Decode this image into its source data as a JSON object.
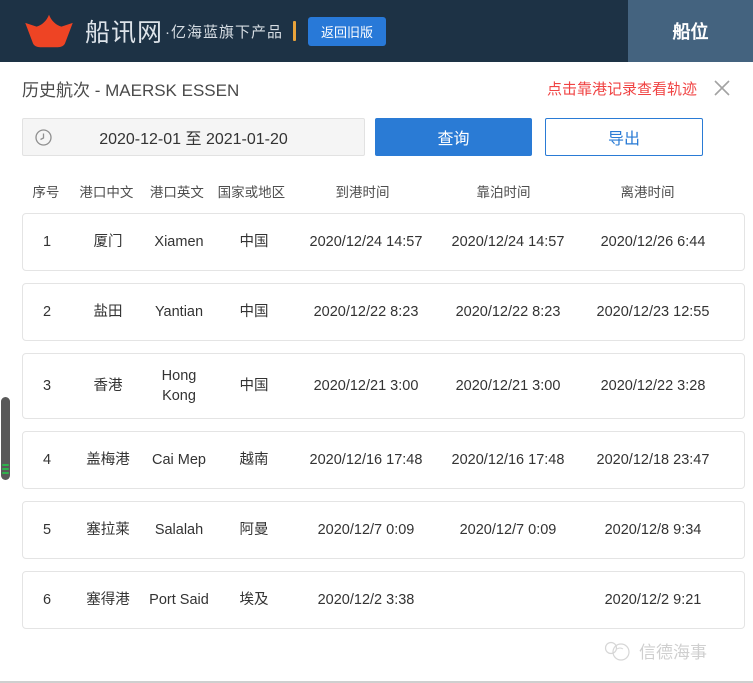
{
  "header": {
    "brand": "船讯网",
    "brand_suffix": "·亿海蓝旗下产品",
    "back_button": "返回旧版",
    "nav_tab": "船位"
  },
  "panel": {
    "title": "历史航次 - MAERSK ESSEN",
    "hint": "点击靠港记录查看轨迹"
  },
  "controls": {
    "date_range": "2020-12-01 至 2021-01-20",
    "query_button": "查询",
    "export_button": "导出"
  },
  "table": {
    "headers": [
      "序号",
      "港口中文",
      "港口英文",
      "国家或地区",
      "到港时间",
      "靠泊时间",
      "离港时间"
    ],
    "rows": [
      [
        "1",
        "厦门",
        "Xiamen",
        "中国",
        "2020/12/24 14:57",
        "2020/12/24 14:57",
        "2020/12/26 6:44"
      ],
      [
        "2",
        "盐田",
        "Yantian",
        "中国",
        "2020/12/22 8:23",
        "2020/12/22 8:23",
        "2020/12/23 12:55"
      ],
      [
        "3",
        "香港",
        "Hong Kong",
        "中国",
        "2020/12/21 3:00",
        "2020/12/21 3:00",
        "2020/12/22 3:28"
      ],
      [
        "4",
        "盖梅港",
        "Cai Mep",
        "越南",
        "2020/12/16 17:48",
        "2020/12/16 17:48",
        "2020/12/18 23:47"
      ],
      [
        "5",
        "塞拉莱",
        "Salalah",
        "阿曼",
        "2020/12/7 0:09",
        "2020/12/7 0:09",
        "2020/12/8 9:34"
      ],
      [
        "6",
        "塞得港",
        "Port Said",
        "埃及",
        "2020/12/2 3:38",
        "",
        "2020/12/2 9:21"
      ]
    ]
  },
  "watermark": {
    "text": "信德海事"
  },
  "colors": {
    "navbar_bg": "#1d3245",
    "nav_tab_bg": "#44637f",
    "accent_blue": "#2a7bd5",
    "alert_red": "#f04343",
    "logo_red": "#ee4424",
    "divider_orange": "#e9a33b",
    "scroll_grip_green": "#2eb24c"
  }
}
